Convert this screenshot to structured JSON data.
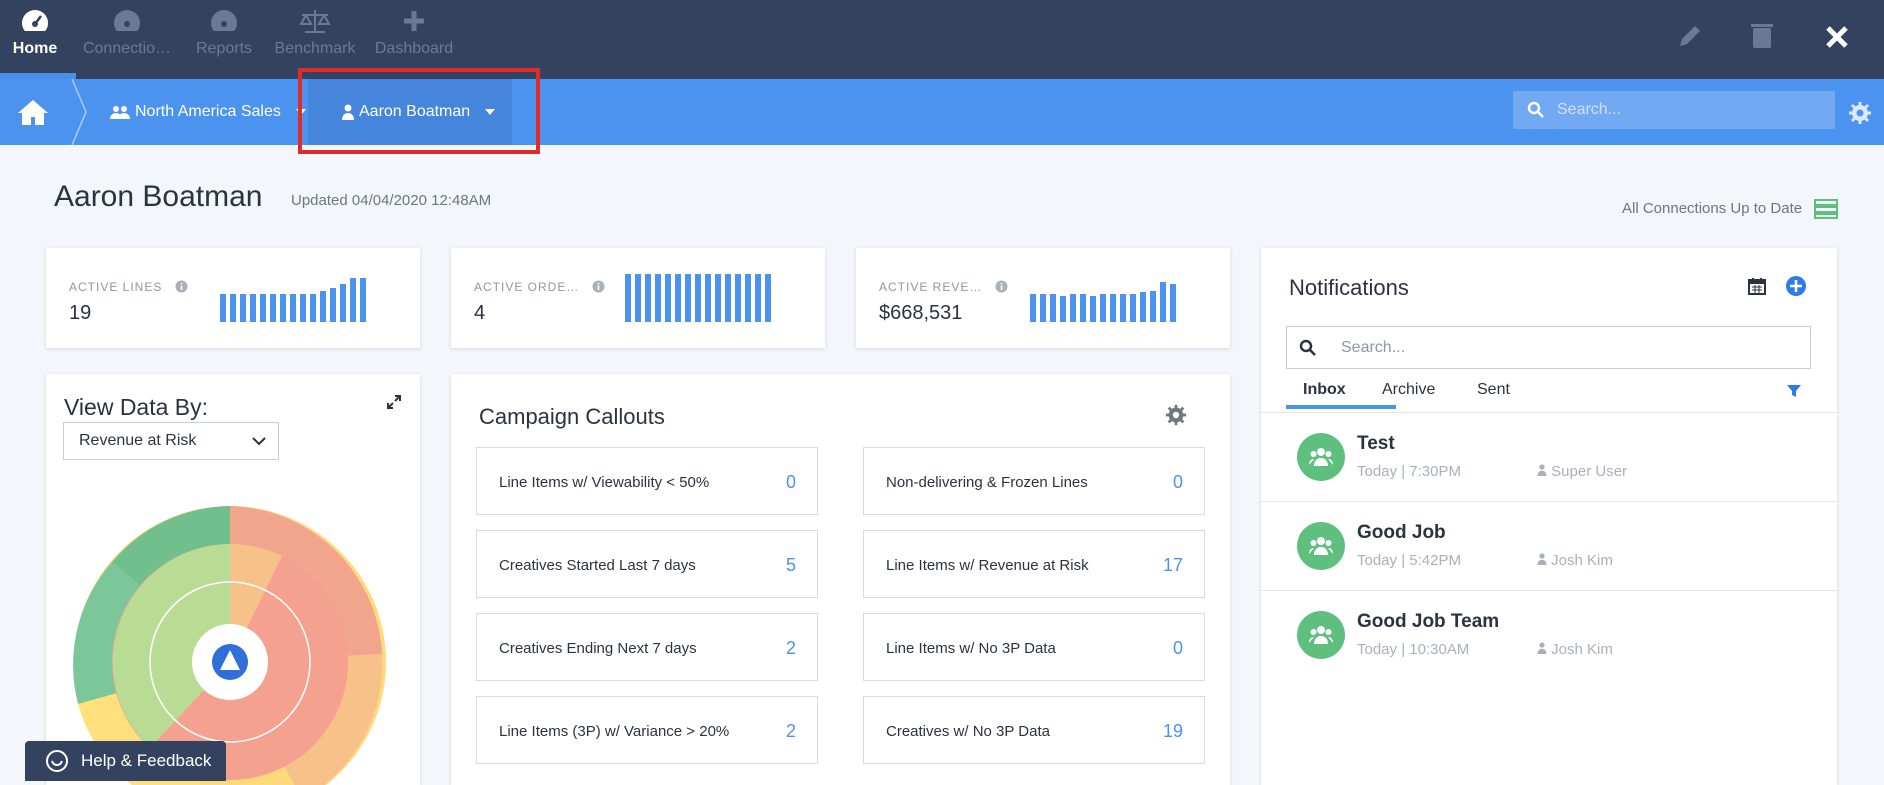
{
  "topnav": {
    "items": [
      {
        "label": "Home",
        "icon": "dashboard-icon",
        "active": true
      },
      {
        "label": "Connectio…",
        "icon": "dashboard-icon"
      },
      {
        "label": "Reports",
        "icon": "dashboard-icon"
      },
      {
        "label": "Benchmark",
        "icon": "scale-icon"
      },
      {
        "label": "Dashboard",
        "icon": "plus-icon"
      }
    ],
    "actions": [
      "edit-icon",
      "trash-icon",
      "close-icon"
    ]
  },
  "breadcrumb": {
    "home_icon": "home-icon",
    "team": "North America Sales",
    "user": "Aaron Boatman"
  },
  "search": {
    "placeholder": "Search..."
  },
  "header": {
    "title": "Aaron Boatman",
    "updated": "Updated 04/04/2020 12:48AM",
    "connections": "All Connections Up to Date"
  },
  "kpis": [
    {
      "label": "ACTIVE LINES",
      "value": "19",
      "bars": [
        28,
        28,
        28,
        28,
        28,
        28,
        28,
        28,
        28,
        28,
        31,
        34,
        38,
        44,
        44
      ]
    },
    {
      "label": "ACTIVE ORDE…",
      "value": "4",
      "bars": [
        48,
        48,
        48,
        48,
        48,
        48,
        48,
        48,
        48,
        48,
        48,
        48,
        48,
        48,
        48
      ]
    },
    {
      "label": "ACTIVE REVE…",
      "value": "$668,531",
      "bars": [
        28,
        28,
        28,
        26,
        28,
        28,
        26,
        28,
        28,
        28,
        28,
        30,
        31,
        40,
        38
      ]
    }
  ],
  "viewby": {
    "title": "View Data By:",
    "selected": "Revenue at Risk"
  },
  "campaign": {
    "title": "Campaign Callouts",
    "callouts": [
      {
        "label": "Line Items w/ Viewability < 50%",
        "value": "0"
      },
      {
        "label": "Non-delivering & Frozen Lines",
        "value": "0"
      },
      {
        "label": "Creatives Started Last 7 days",
        "value": "5"
      },
      {
        "label": "Line Items w/ Revenue at Risk",
        "value": "17"
      },
      {
        "label": "Creatives Ending Next 7 days",
        "value": "2"
      },
      {
        "label": "Line Items w/ No 3P Data",
        "value": "0"
      },
      {
        "label": "Line Items (3P) w/ Variance > 20%",
        "value": "2"
      },
      {
        "label": "Creatives w/ No 3P Data",
        "value": "19"
      }
    ]
  },
  "notifications": {
    "title": "Notifications",
    "search_placeholder": "Search...",
    "tabs": [
      "Inbox",
      "Archive",
      "Sent"
    ],
    "items": [
      {
        "title": "Test",
        "time": "Today | 7:30PM",
        "user": "Super User"
      },
      {
        "title": "Good Job",
        "time": "Today | 5:42PM",
        "user": "Josh Kim"
      },
      {
        "title": "Good Job Team",
        "time": "Today | 10:30AM",
        "user": "Josh Kim"
      }
    ]
  },
  "help": {
    "label": "Help & Feedback"
  }
}
